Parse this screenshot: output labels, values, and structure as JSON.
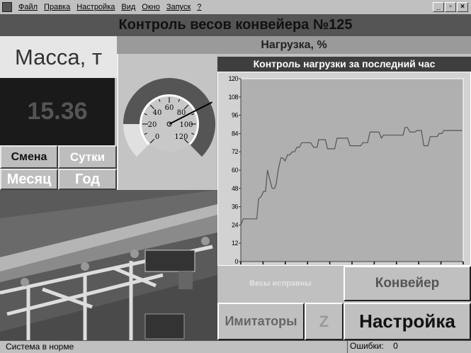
{
  "menu": {
    "items": [
      "Файл",
      "Правка",
      "Настройка",
      "Вид",
      "Окно",
      "Запуск",
      "?"
    ]
  },
  "window_controls": {
    "minimize": "_",
    "maximize": "▫",
    "close": "×"
  },
  "title": "Контроль весов конвейера №125",
  "mass": {
    "label": "Масса, т",
    "value": "15.36"
  },
  "period_buttons": [
    {
      "label": "Смена",
      "active": true
    },
    {
      "label": "Сутки",
      "active": false
    },
    {
      "label": "Месяц",
      "active": false
    },
    {
      "label": "Год",
      "active": false
    }
  ],
  "load": {
    "header": "Нагрузка, %",
    "gauge": {
      "value": 88,
      "min": 0,
      "max": 120,
      "tick_labels": [
        "0",
        "20",
        "40",
        "60",
        "80",
        "100",
        "120"
      ],
      "low_zone_max": 20,
      "colors": {
        "ring": "#555555",
        "low_zone": "#e0e0e0",
        "face": "#ffffff"
      }
    }
  },
  "chart_data": {
    "type": "line",
    "title": "Контроль нагрузки за последний час",
    "xlabel": "",
    "ylabel": "",
    "ylim": [
      0,
      120
    ],
    "xlim": [
      0,
      100
    ],
    "yticks": [
      "0",
      "12",
      "24",
      "36",
      "48",
      "60",
      "72",
      "84",
      "96",
      "108",
      "120"
    ],
    "x_tick_count": 11,
    "grid": false,
    "series": [
      {
        "x": [
          0,
          1.1,
          7.2,
          8,
          9.3,
          10.2,
          11.1,
          12,
          13,
          14.1,
          15.2,
          15.9,
          16.8,
          18,
          18.9,
          19.9,
          21,
          22,
          23.1,
          24.2,
          25.2,
          26.3,
          27.4,
          31.4,
          32.7,
          34.3,
          35,
          38,
          39,
          42.2,
          43.3,
          48,
          49.1,
          53.9,
          54.9,
          57,
          58.1,
          62.1,
          63.2,
          64.2,
          73,
          73.8,
          74.9,
          76.1,
          78.3,
          79.3,
          81.2,
          82.3,
          84.1,
          85.2,
          88.3,
          89.1,
          90.5,
          91.2,
          99.5
        ],
        "y": [
          24,
          28,
          28,
          41,
          43,
          46,
          46,
          60,
          54,
          48,
          48,
          51,
          60,
          68,
          68,
          66,
          70,
          70,
          72,
          72,
          75,
          75,
          78,
          78,
          75,
          75,
          80,
          80,
          74,
          74,
          81,
          81,
          76,
          76,
          78,
          78,
          85,
          85,
          81,
          83,
          83,
          88,
          88,
          85,
          85,
          86,
          86,
          76,
          76,
          82,
          82,
          84,
          84,
          86,
          86
        ]
      }
    ],
    "colors": {
      "line": "#555555",
      "plot_bg": "#b0b0b0"
    }
  },
  "status_label": "Весы исправны",
  "buttons": {
    "conveyor": "Конвейер",
    "simulators": "Имитаторы",
    "zero": "Z",
    "settings": "Настройка"
  },
  "statusbar": {
    "message": "Система в норме",
    "errors_label": "Ошибки:",
    "errors_count": "0"
  }
}
